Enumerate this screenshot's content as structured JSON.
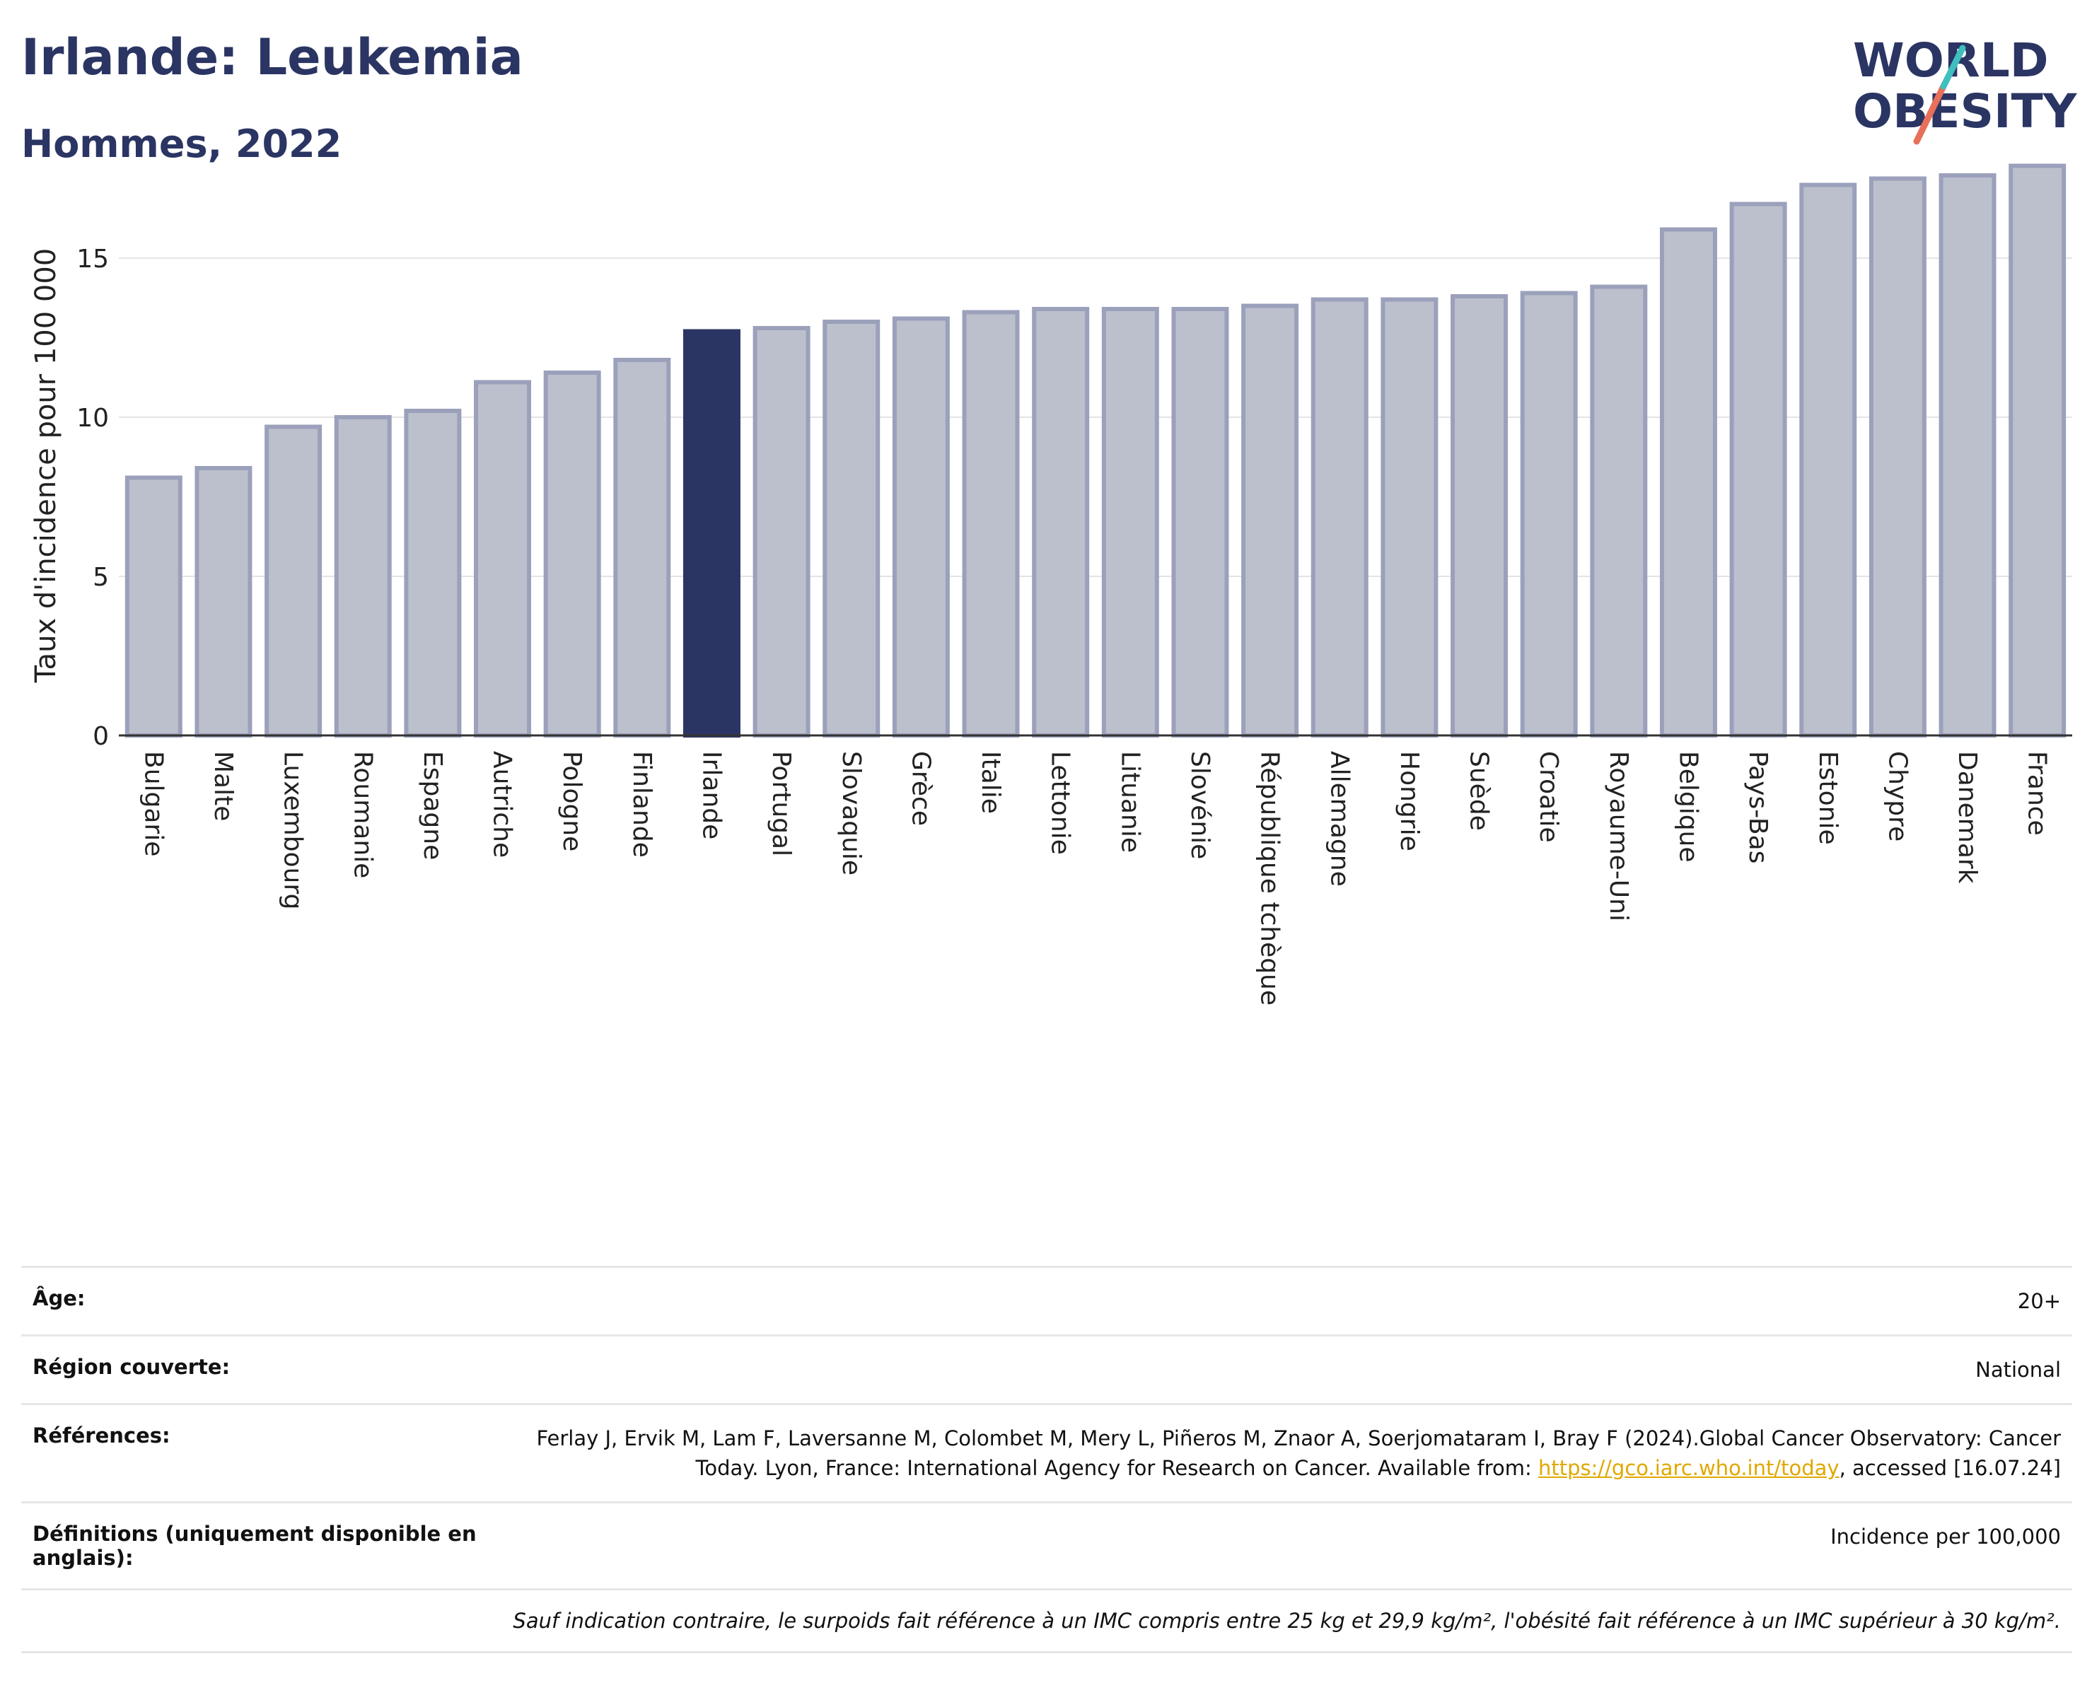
{
  "header": {
    "title": "Irlande: Leukemia",
    "subtitle": "Hommes, 2022",
    "logo_line1": "WORLD",
    "logo_line2": "OBESITY"
  },
  "colors": {
    "highlight": "#2b3563",
    "bar": "#bcc0cd",
    "bar_edge": "#9ba0bb",
    "text": "#2b3563",
    "link": "#e0a800"
  },
  "chart_data": {
    "type": "bar",
    "ylabel": "Taux d'incidence pour 100 000",
    "ylim": [
      0,
      18
    ],
    "yticks": [
      0,
      5,
      10,
      15
    ],
    "grid": true,
    "highlight_category": "Irlande",
    "categories": [
      "Bulgarie",
      "Malte",
      "Luxembourg",
      "Roumanie",
      "Espagne",
      "Autriche",
      "Pologne",
      "Finlande",
      "Irlande",
      "Portugal",
      "Slovaquie",
      "Grèce",
      "Italie",
      "Lettonie",
      "Lituanie",
      "Slovénie",
      "République tchèque",
      "Allemagne",
      "Hongrie",
      "Suède",
      "Croatie",
      "Royaume-Uni",
      "Belgique",
      "Pays-Bas",
      "Estonie",
      "Chypre",
      "Danemark",
      "France"
    ],
    "values": [
      8.1,
      8.4,
      9.7,
      10.0,
      10.2,
      11.1,
      11.4,
      11.8,
      12.7,
      12.8,
      13.0,
      13.1,
      13.3,
      13.4,
      13.4,
      13.4,
      13.5,
      13.7,
      13.7,
      13.8,
      13.9,
      14.1,
      15.9,
      16.7,
      17.3,
      17.5,
      17.6,
      17.9
    ]
  },
  "info": {
    "age_label": "Âge:",
    "age_value": "20+",
    "region_label": "Région couverte:",
    "region_value": "National",
    "refs_label": "Références:",
    "refs_text_1": "Ferlay J, Ervik M, Lam F, Laversanne M, Colombet M, Mery L, Piñeros M, Znaor A, Soerjomataram I, Bray F (2024).Global Cancer Observatory: Cancer Today. Lyon, France: International Agency for Research on Cancer. Available from: ",
    "refs_link": "https://gco.iarc.who.int/today",
    "refs_text_2": ", accessed [16.07.24]",
    "defs_label": "Définitions (uniquement disponible en anglais):",
    "defs_value": "Incidence per 100,000",
    "footnote": "Sauf indication contraire, le surpoids fait référence à un IMC compris entre 25 kg et 29,9 kg/m², l'obésité fait référence à un IMC supérieur à 30 kg/m²."
  }
}
